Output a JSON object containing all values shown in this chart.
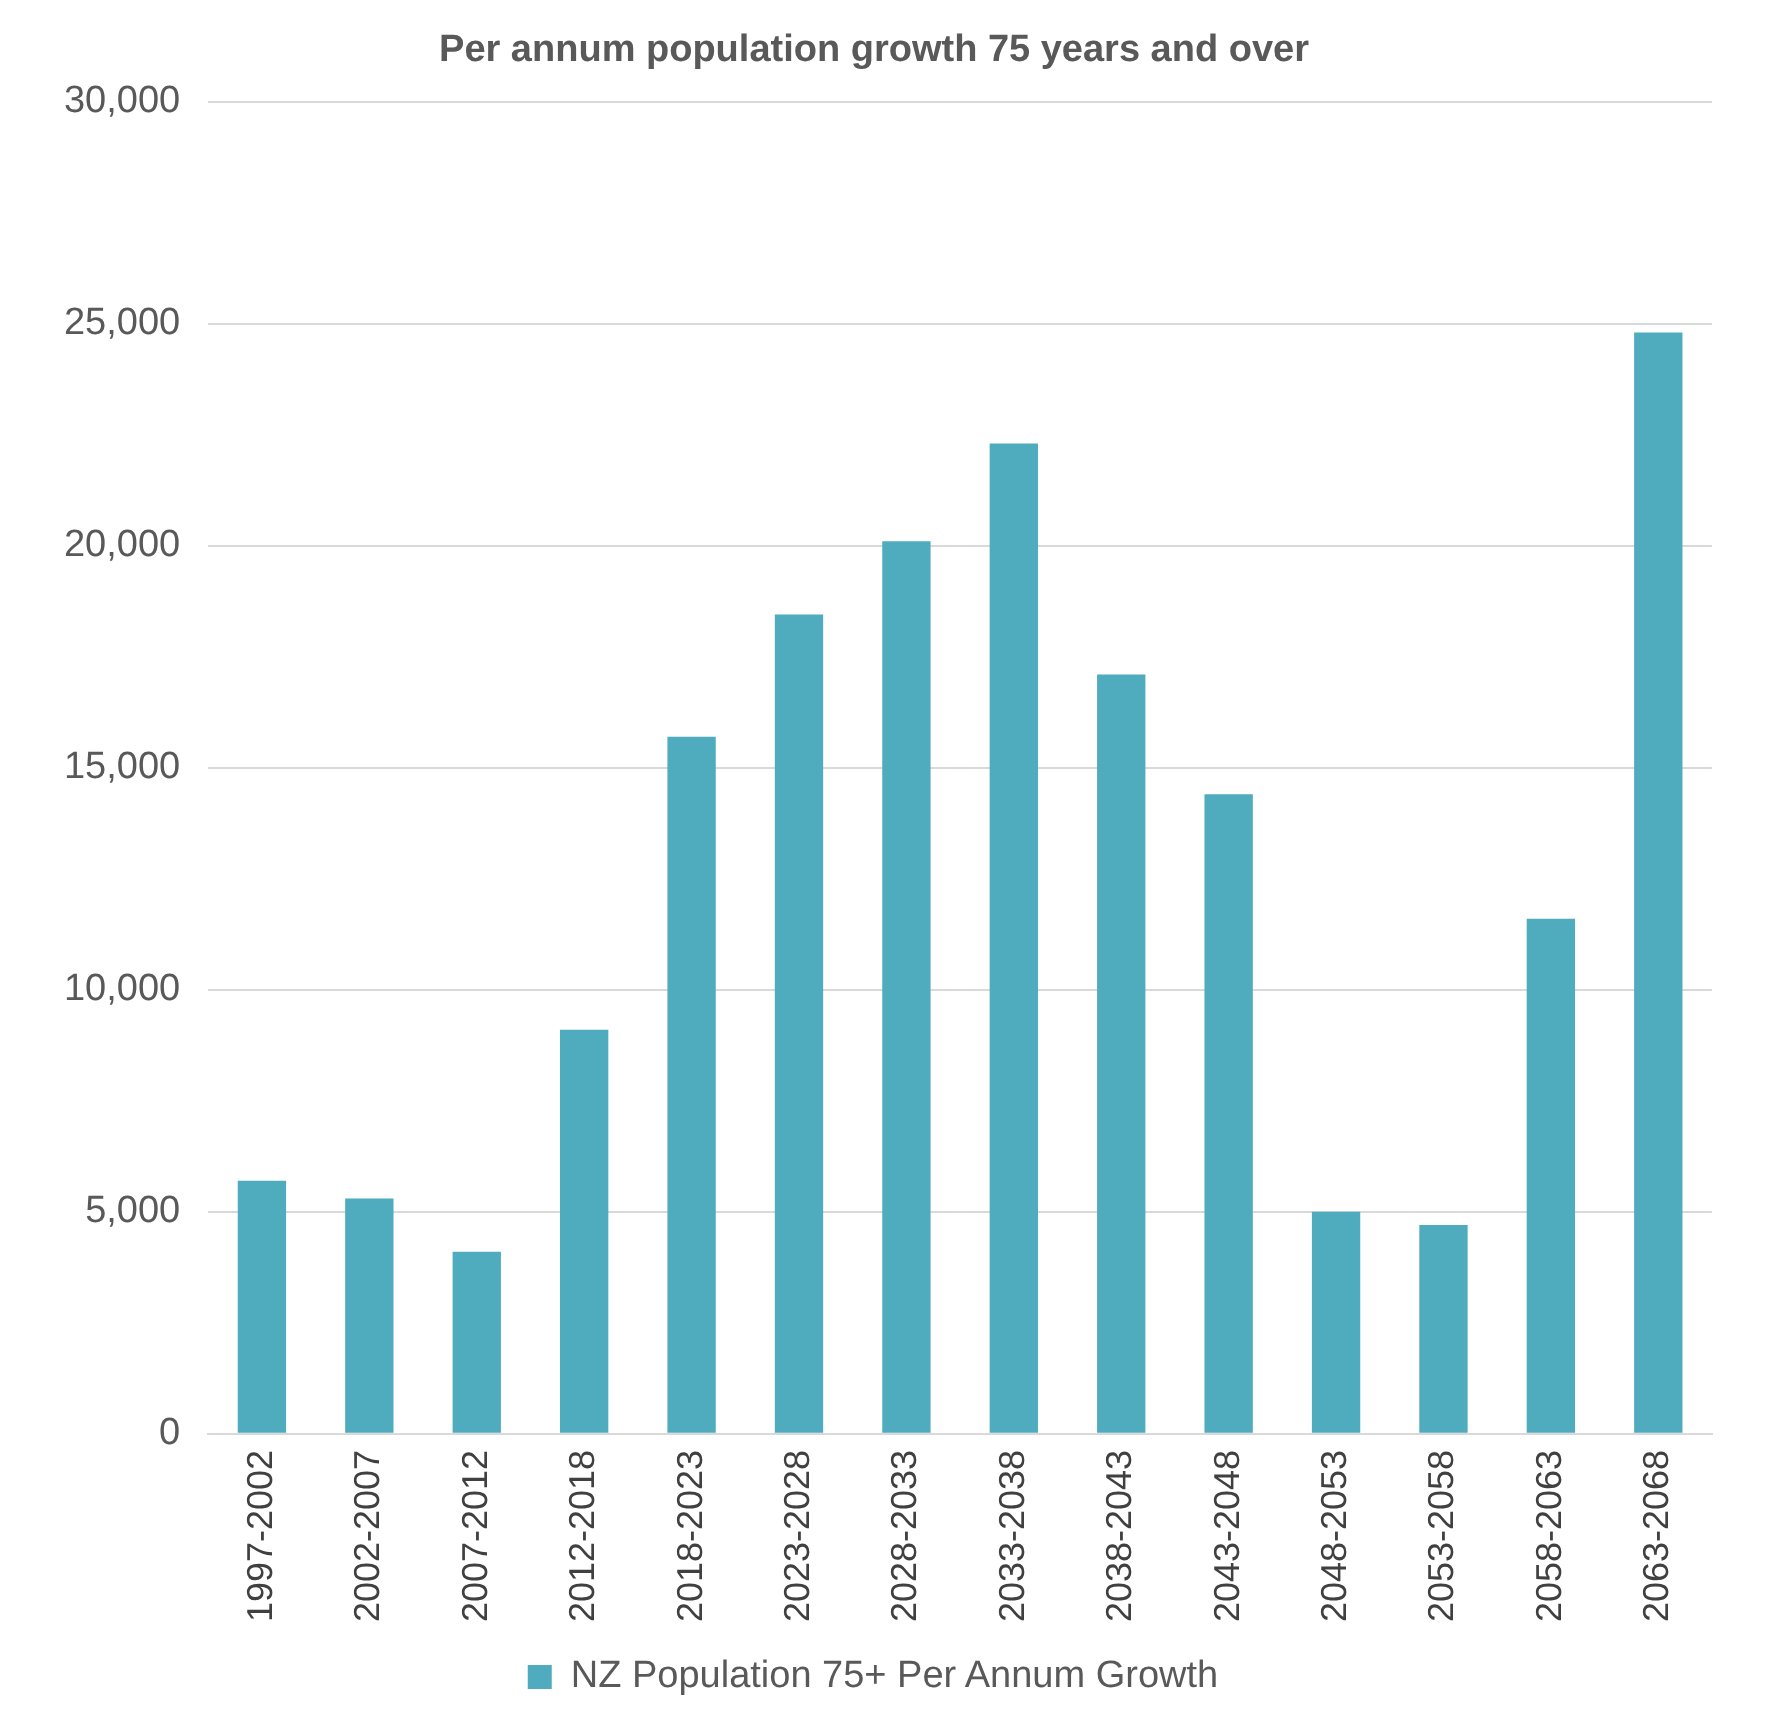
{
  "chart_data": {
    "type": "bar",
    "title": "Per annum population growth 75 years and over",
    "categories": [
      "1997-2002",
      "2002-2007",
      "2007-2012",
      "2012-2018",
      "2018-2023",
      "2023-2028",
      "2028-2033",
      "2033-2038",
      "2038-2043",
      "2043-2048",
      "2048-2053",
      "2053-2058",
      "2058-2063",
      "2063-2068"
    ],
    "series": [
      {
        "name": "NZ Population 75+ Per Annum Growth",
        "color": "#4fabbe",
        "values": [
          5700,
          5300,
          4100,
          9100,
          15700,
          18450,
          20100,
          22300,
          17100,
          14400,
          5000,
          4700,
          11600,
          24800
        ]
      }
    ],
    "ylim": [
      0,
      30000
    ],
    "yticks": [
      0,
      {
        "value": 5000,
        "label": "5,000"
      },
      {
        "value": 10000,
        "label": "10,000"
      },
      {
        "value": 15000,
        "label": "15,000"
      },
      {
        "value": 20000,
        "label": "20,000"
      },
      {
        "value": 25000,
        "label": "25,000"
      },
      {
        "value": 30000,
        "label": "30,000"
      }
    ],
    "grid": "y",
    "legend": "bottom"
  }
}
